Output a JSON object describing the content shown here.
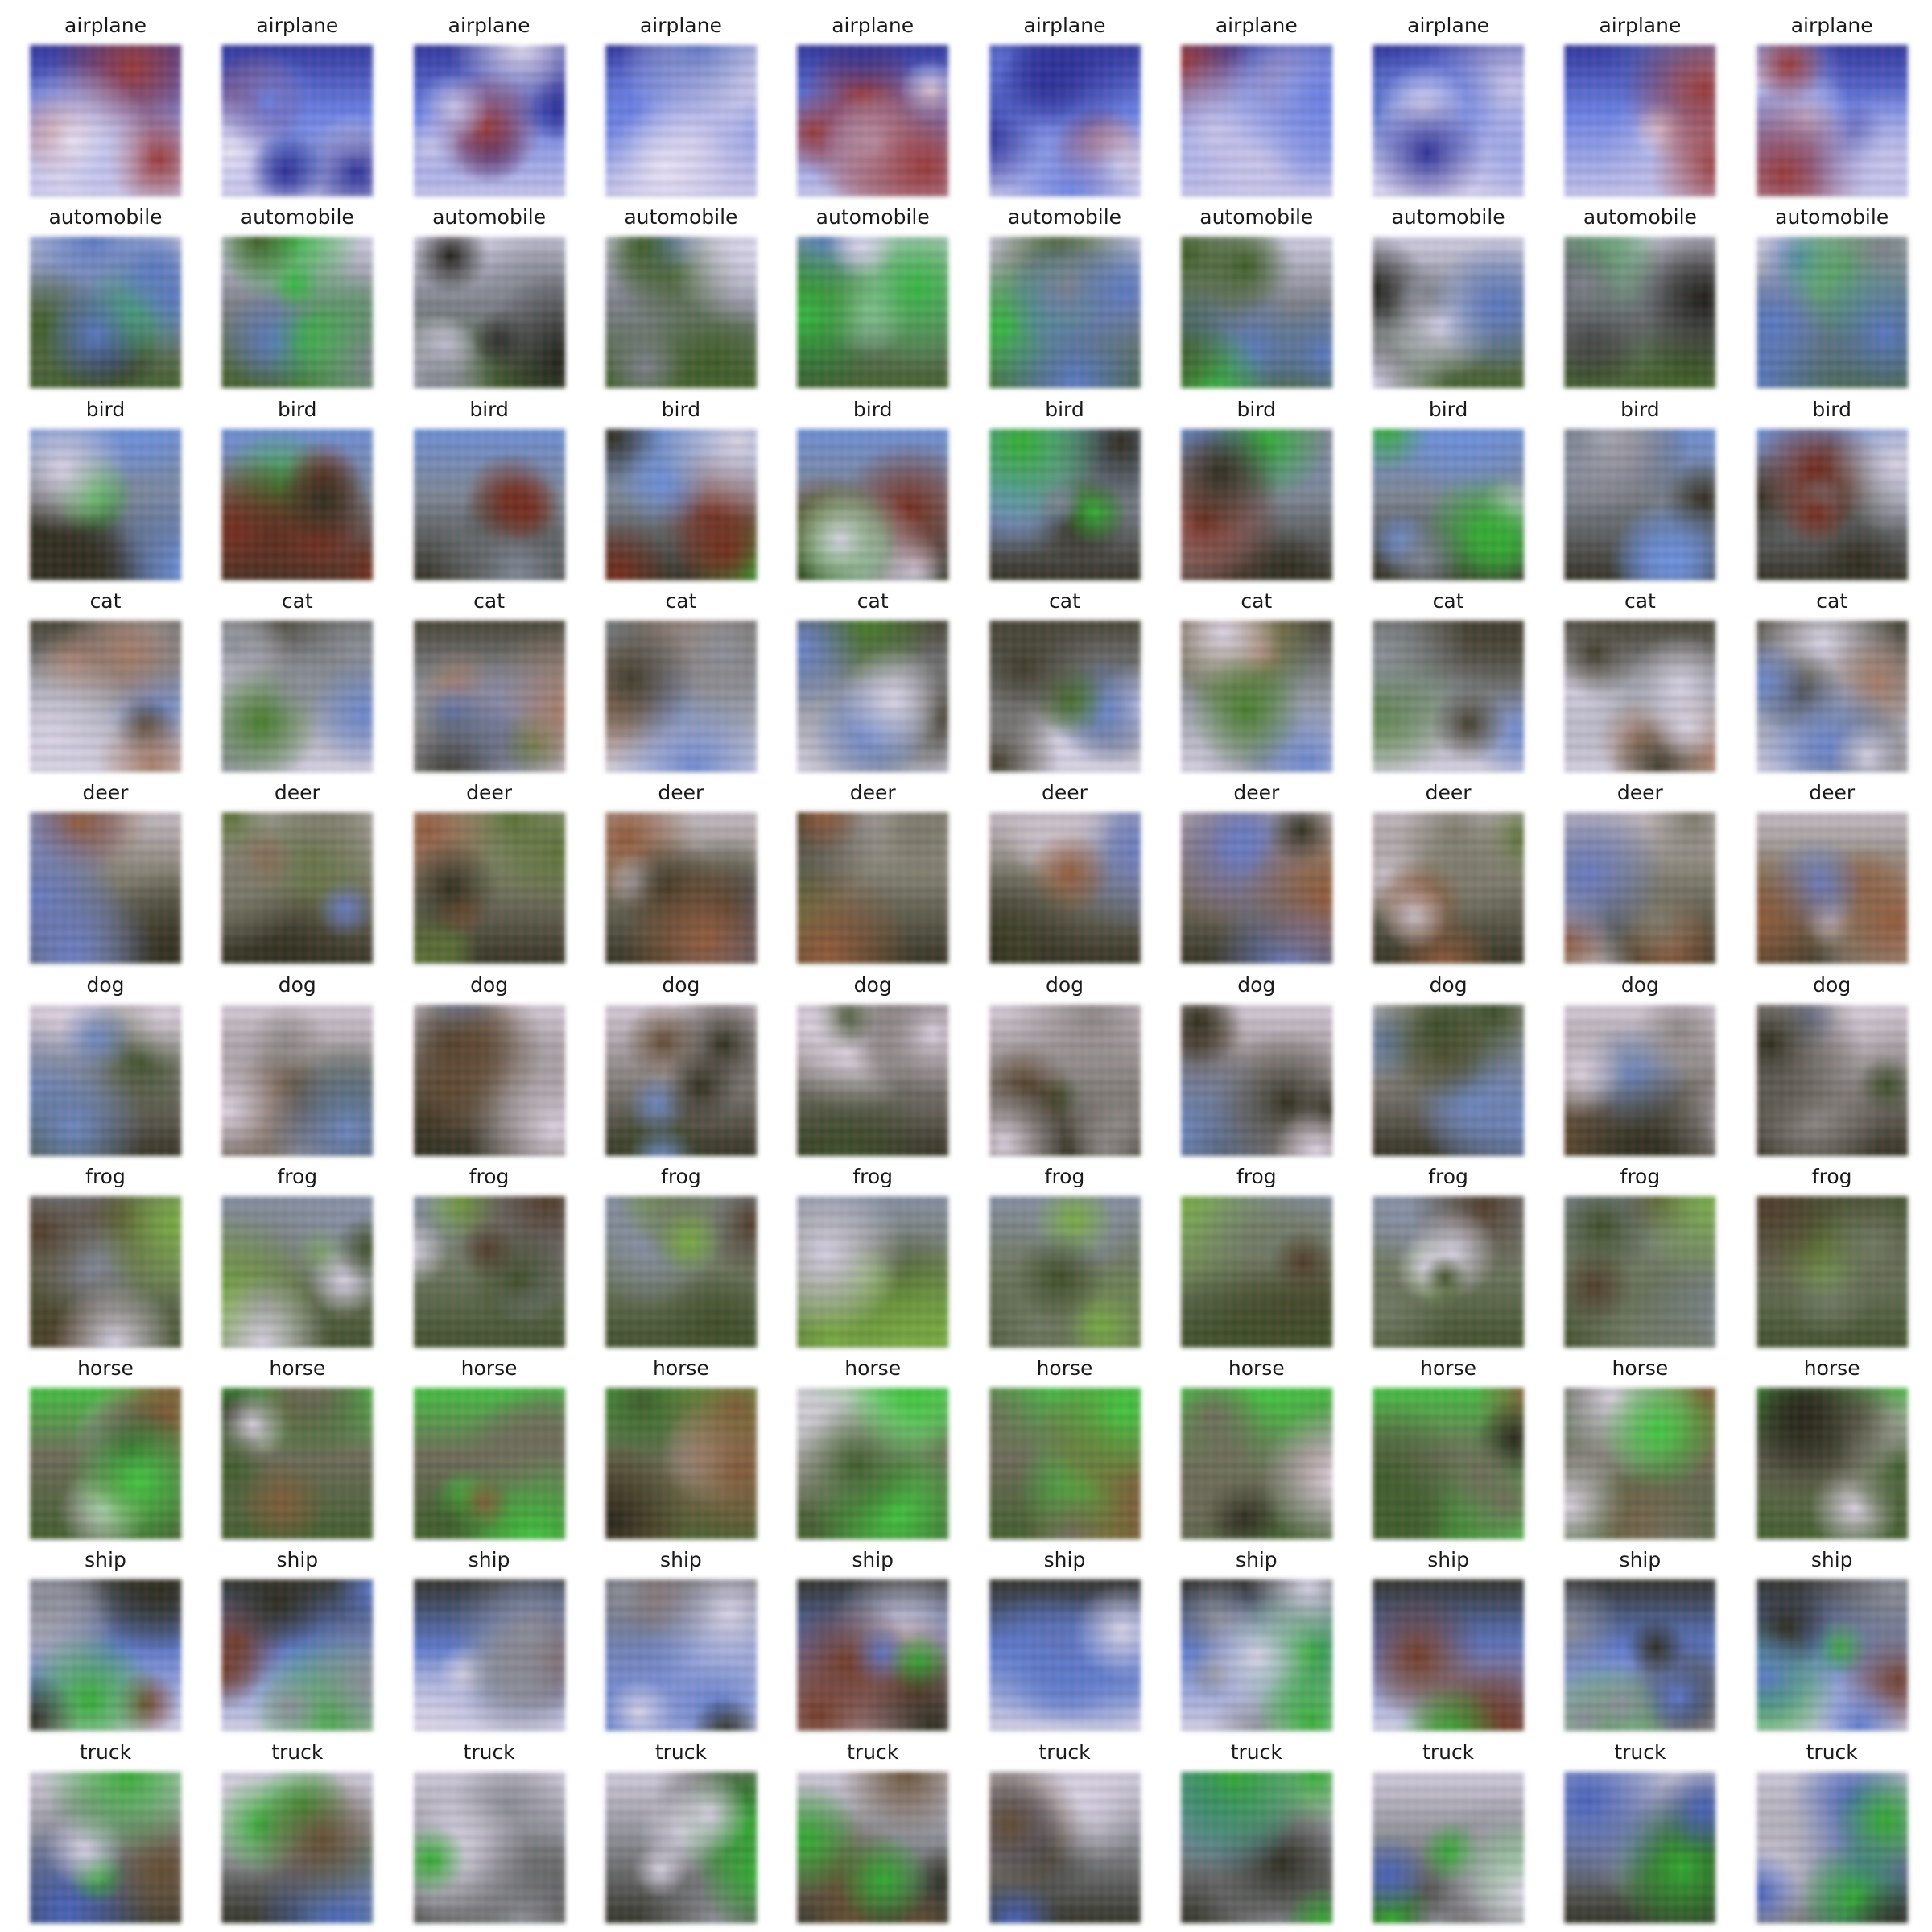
{
  "figure": {
    "rows": [
      {
        "class": "airplane",
        "labels": [
          "airplane",
          "airplane",
          "airplane",
          "airplane",
          "airplane",
          "airplane",
          "airplane",
          "airplane",
          "airplane",
          "airplane"
        ]
      },
      {
        "class": "automobile",
        "labels": [
          "automobile",
          "automobile",
          "automobile",
          "automobile",
          "automobile",
          "automobile",
          "automobile",
          "automobile",
          "automobile",
          "automobile"
        ]
      },
      {
        "class": "bird",
        "labels": [
          "bird",
          "bird",
          "bird",
          "bird",
          "bird",
          "bird",
          "bird",
          "bird",
          "bird",
          "bird"
        ]
      },
      {
        "class": "cat",
        "labels": [
          "cat",
          "cat",
          "cat",
          "cat",
          "cat",
          "cat",
          "cat",
          "cat",
          "cat",
          "cat"
        ]
      },
      {
        "class": "deer",
        "labels": [
          "deer",
          "deer",
          "deer",
          "deer",
          "deer",
          "deer",
          "deer",
          "deer",
          "deer",
          "deer"
        ]
      },
      {
        "class": "dog",
        "labels": [
          "dog",
          "dog",
          "dog",
          "dog",
          "dog",
          "dog",
          "dog",
          "dog",
          "dog",
          "dog"
        ]
      },
      {
        "class": "frog",
        "labels": [
          "frog",
          "frog",
          "frog",
          "frog",
          "frog",
          "frog",
          "frog",
          "frog",
          "frog",
          "frog"
        ]
      },
      {
        "class": "horse",
        "labels": [
          "horse",
          "horse",
          "horse",
          "horse",
          "horse",
          "horse",
          "horse",
          "horse",
          "horse",
          "horse"
        ]
      },
      {
        "class": "ship",
        "labels": [
          "ship",
          "ship",
          "ship",
          "ship",
          "ship",
          "ship",
          "ship",
          "ship",
          "ship",
          "ship"
        ]
      },
      {
        "class": "truck",
        "labels": [
          "truck",
          "truck",
          "truck",
          "truck",
          "truck",
          "truck",
          "truck",
          "truck",
          "truck",
          "truck"
        ]
      }
    ],
    "palettes": {
      "airplane": [
        "#6b7fd6",
        "#c9c6e6",
        "#2b2f8a",
        "#e9e3f2",
        "#8f3a3a",
        "#5a6fb8"
      ],
      "automobile": [
        "#7c8088",
        "#3e5a2a",
        "#d9d6e8",
        "#1b1b16",
        "#5c78b8",
        "#3fb34a"
      ],
      "bird": [
        "#7d8590",
        "#2c2a1e",
        "#6f8fd0",
        "#3caa3c",
        "#d8d2e0",
        "#6b2b1e"
      ],
      "cat": [
        "#8a8f96",
        "#d9d4e2",
        "#3d3a2c",
        "#6e86c4",
        "#4a7a32",
        "#a07c6a"
      ],
      "deer": [
        "#7c7a6c",
        "#2d2c1e",
        "#c9c0c8",
        "#5a6e3a",
        "#8a5a3e",
        "#6a7ab8"
      ],
      "dog": [
        "#8b8684",
        "#2b2a1c",
        "#dcd2de",
        "#5a4632",
        "#6f86b8",
        "#3a4a2a"
      ],
      "frog": [
        "#6f7864",
        "#3d4a2a",
        "#8891a4",
        "#7aa84a",
        "#d6d0e0",
        "#4a3a2a"
      ],
      "horse": [
        "#6c6a5a",
        "#3e5a2e",
        "#4bc24a",
        "#d8d0dc",
        "#7a5a3a",
        "#25241a"
      ],
      "ship": [
        "#5f78c0",
        "#d8d4e4",
        "#2a2a1e",
        "#3da83d",
        "#6b3a2a",
        "#8a8d96"
      ],
      "truck": [
        "#8a8c92",
        "#2a2c22",
        "#d8d2e0",
        "#4a62b0",
        "#5e4a32",
        "#3aa63a"
      ]
    }
  }
}
